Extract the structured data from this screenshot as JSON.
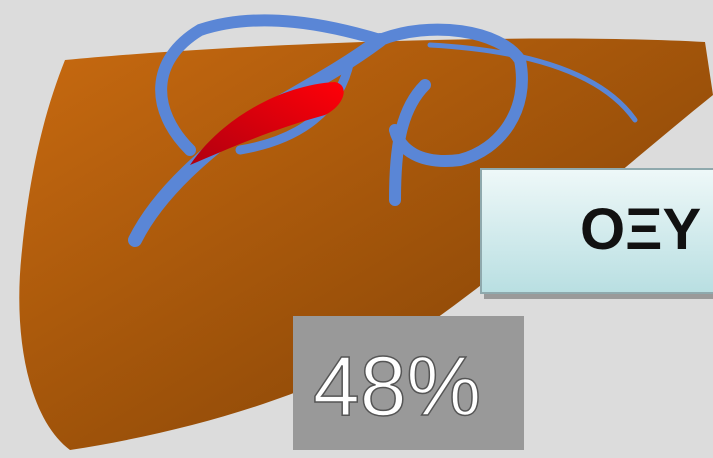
{
  "labels": {
    "title": "ΟΞΥ",
    "percent": "48%"
  }
}
